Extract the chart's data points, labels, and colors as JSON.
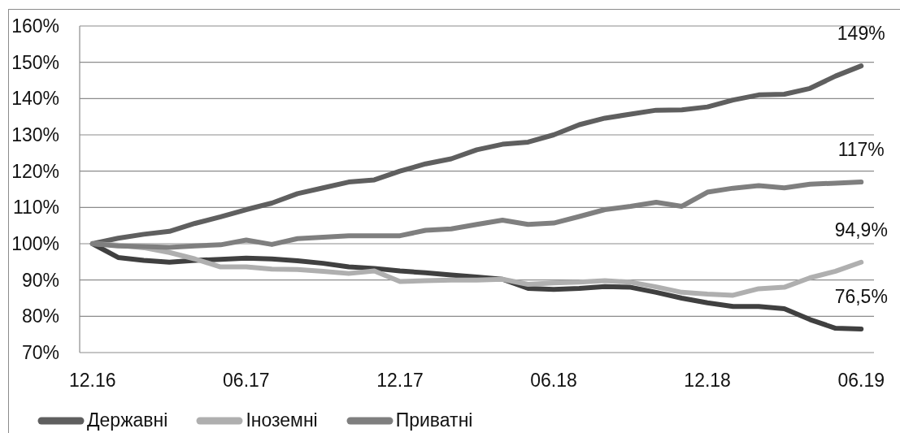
{
  "chart_data": {
    "type": "line",
    "categories": [
      "12.16",
      null,
      null,
      null,
      null,
      null,
      "06.17",
      null,
      null,
      null,
      null,
      null,
      "12.17",
      null,
      null,
      null,
      null,
      null,
      "06.18",
      null,
      null,
      null,
      null,
      null,
      "12.18",
      null,
      null,
      null,
      null,
      null,
      "06.19"
    ],
    "series": [
      {
        "name": "Державні",
        "color": "#5f5f5f",
        "values": [
          100,
          101.5,
          102.6,
          103.4,
          105.6,
          107.4,
          109.4,
          111.2,
          113.8,
          115.4,
          117.0,
          117.6,
          120.0,
          122.0,
          123.4,
          125.9,
          127.4,
          128.0,
          130.0,
          132.8,
          134.6,
          135.7,
          136.8,
          136.9,
          137.7,
          139.6,
          141.0,
          141.2,
          142.8,
          146.2,
          149
        ],
        "value_labels": [
          null,
          null,
          null,
          null,
          null,
          null,
          null,
          null,
          null,
          null,
          null,
          null,
          null,
          null,
          null,
          null,
          null,
          null,
          null,
          null,
          null,
          null,
          null,
          null,
          null,
          null,
          null,
          null,
          null,
          null,
          "149%"
        ]
      },
      {
        "color": "#404040",
        "values": [
          100,
          96.2,
          95.4,
          94.9,
          95.4,
          95.7,
          96.0,
          95.8,
          95.3,
          94.6,
          93.6,
          93.2,
          92.5,
          92.0,
          91.4,
          90.8,
          90.2,
          87.7,
          87.4,
          87.7,
          88.2,
          88.0,
          86.6,
          85.0,
          83.7,
          82.7,
          82.7,
          82.1,
          79.1,
          76.7,
          76.5
        ],
        "value_labels": [
          null,
          null,
          null,
          null,
          null,
          null,
          null,
          null,
          null,
          null,
          null,
          null,
          null,
          null,
          null,
          null,
          null,
          null,
          null,
          null,
          null,
          null,
          null,
          null,
          null,
          null,
          null,
          null,
          null,
          null,
          "76,5%"
        ]
      },
      {
        "name": "Іноземні",
        "color": "#afafaf",
        "values": [
          100,
          99.6,
          98.9,
          97.6,
          95.8,
          93.6,
          93.6,
          93.0,
          92.9,
          92.4,
          91.8,
          92.5,
          89.6,
          89.8,
          90.0,
          90.0,
          90.2,
          88.8,
          89.2,
          89.4,
          89.8,
          89.4,
          88.1,
          86.6,
          86.1,
          85.8,
          87.6,
          88.0,
          90.6,
          92.4,
          94.9
        ],
        "value_labels": [
          null,
          null,
          null,
          null,
          null,
          null,
          null,
          null,
          null,
          null,
          null,
          null,
          null,
          null,
          null,
          null,
          null,
          null,
          null,
          null,
          null,
          null,
          null,
          null,
          null,
          null,
          null,
          null,
          null,
          null,
          "94,9%"
        ]
      },
      {
        "name": "Приватні",
        "color": "#7f7f7f",
        "values": [
          100,
          99.4,
          99.2,
          99.0,
          99.4,
          99.7,
          101.0,
          99.8,
          101.4,
          101.8,
          102.2,
          102.2,
          102.2,
          103.7,
          104.1,
          105.3,
          106.5,
          105.3,
          105.7,
          107.5,
          109.4,
          110.3,
          111.4,
          110.3,
          114.2,
          115.3,
          116.0,
          115.4,
          116.4,
          116.7,
          117
        ],
        "value_labels": [
          null,
          null,
          null,
          null,
          null,
          null,
          null,
          null,
          null,
          null,
          null,
          null,
          null,
          null,
          null,
          null,
          null,
          null,
          null,
          null,
          null,
          null,
          null,
          null,
          null,
          null,
          null,
          null,
          null,
          null,
          "117%"
        ]
      }
    ],
    "ylim": [
      70,
      160
    ],
    "yticks": [
      {
        "value": 70,
        "label": "70%"
      },
      {
        "value": 80,
        "label": "80%"
      },
      {
        "value": 90,
        "label": "90%"
      },
      {
        "value": 100,
        "label": "100%"
      },
      {
        "value": 110,
        "label": "110%"
      },
      {
        "value": 120,
        "label": "120%"
      },
      {
        "value": 130,
        "label": "130%"
      },
      {
        "value": 140,
        "label": "140%"
      },
      {
        "value": 150,
        "label": "150%"
      },
      {
        "value": 160,
        "label": "160%"
      }
    ],
    "grid": "y",
    "legend": "bottom",
    "line_style": "solid"
  }
}
